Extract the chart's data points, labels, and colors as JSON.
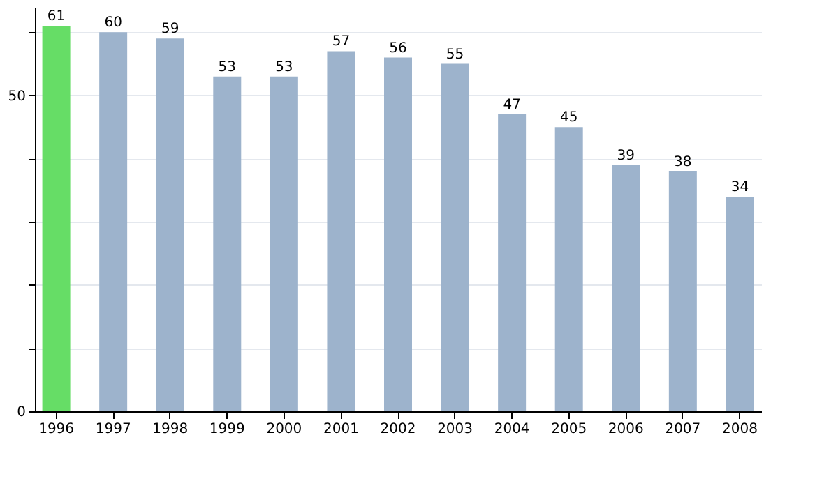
{
  "chart_data": {
    "type": "bar",
    "categories": [
      "1996",
      "1997",
      "1998",
      "1999",
      "2000",
      "2001",
      "2002",
      "2003",
      "2004",
      "2005",
      "2006",
      "2007",
      "2008"
    ],
    "values": [
      61,
      60,
      59,
      53,
      53,
      57,
      56,
      55,
      47,
      45,
      39,
      38,
      34
    ],
    "colors": [
      "#66dd66",
      "#9db3cc",
      "#9db3cc",
      "#9db3cc",
      "#9db3cc",
      "#9db3cc",
      "#9db3cc",
      "#9db3cc",
      "#9db3cc",
      "#9db3cc",
      "#9db3cc",
      "#9db3cc",
      "#9db3cc"
    ],
    "ylim": [
      0,
      64
    ],
    "yticks": [
      0,
      {
        "value": 10,
        "label": null
      },
      {
        "value": 20,
        "label": null
      },
      {
        "value": 30,
        "label": null
      },
      {
        "value": 40,
        "label": null
      },
      50,
      {
        "value": 60,
        "label": null
      }
    ],
    "grid": "y",
    "data_labels": true
  }
}
